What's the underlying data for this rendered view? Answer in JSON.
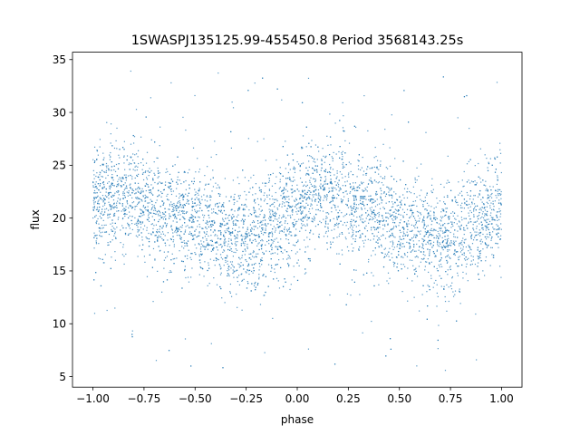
{
  "chart_data": {
    "type": "scatter",
    "title": "1SWASPJ135125.99-455450.8 Period 3568143.25s",
    "xlabel": "phase",
    "ylabel": "flux",
    "xlim": [
      -1.1,
      1.1
    ],
    "ylim": [
      4.0,
      35.7
    ],
    "xticks": [
      -1.0,
      -0.75,
      -0.5,
      -0.25,
      0.0,
      0.25,
      0.5,
      0.75,
      1.0
    ],
    "xtick_labels": [
      "−1.00",
      "−0.75",
      "−0.50",
      "−0.25",
      "0.00",
      "0.25",
      "0.50",
      "0.75",
      "1.00"
    ],
    "yticks": [
      5,
      10,
      15,
      20,
      25,
      30,
      35
    ],
    "ytick_labels": [
      "5",
      "10",
      "15",
      "20",
      "25",
      "30",
      "35"
    ],
    "grid": false,
    "marker_color": "#1f77b4",
    "series": [
      {
        "trend": {
          "x": [
            -1.0,
            -0.9,
            -0.8,
            -0.75,
            -0.7,
            -0.6,
            -0.5,
            -0.4,
            -0.3,
            -0.25,
            -0.2,
            -0.1,
            0.0,
            0.1,
            0.2,
            0.25,
            0.3,
            0.4,
            0.5,
            0.6,
            0.7,
            0.75,
            0.8,
            0.9,
            1.0
          ],
          "y": [
            21.5,
            22.0,
            22.0,
            21.5,
            21.0,
            20.5,
            19.5,
            18.5,
            18.0,
            18.0,
            18.5,
            19.5,
            21.0,
            22.0,
            22.0,
            21.5,
            21.0,
            20.5,
            19.5,
            18.5,
            18.0,
            18.0,
            18.5,
            19.5,
            21.0
          ]
        },
        "scatter_band": 2.6,
        "outlier_range": [
          5.5,
          34.0
        ]
      }
    ]
  }
}
